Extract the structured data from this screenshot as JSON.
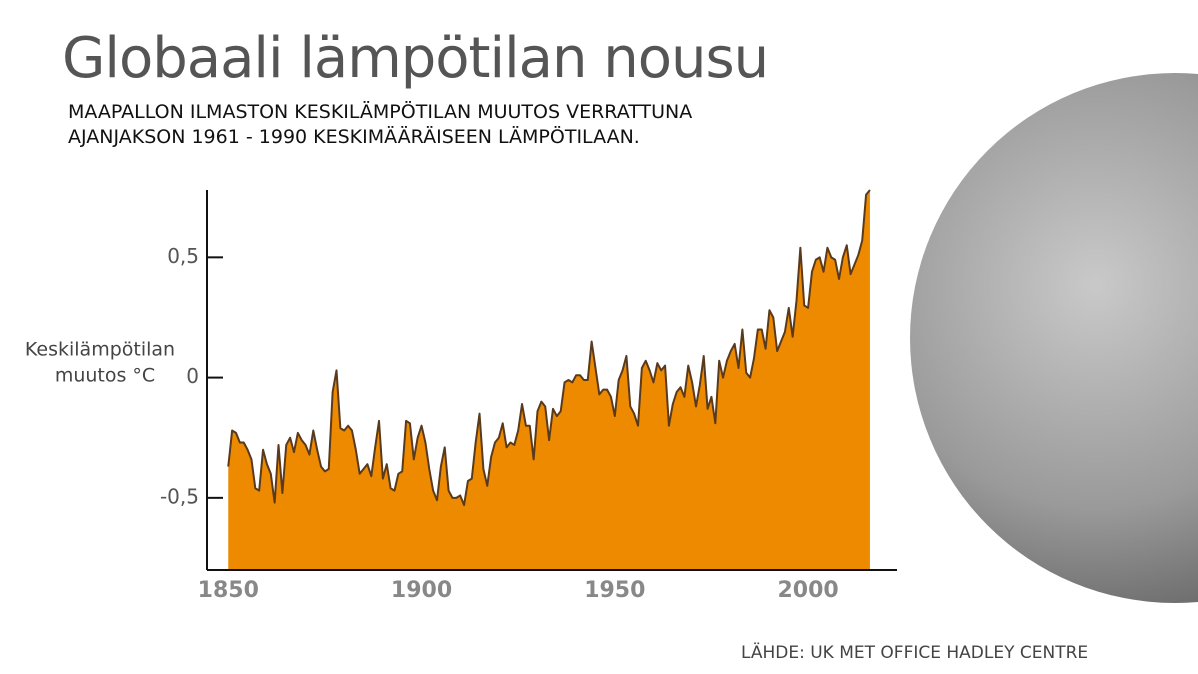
{
  "chart_data": {
    "type": "area",
    "title": "Globaali lämpötilan nousu",
    "subtitle": "MAAPALLON ILMASTON KESKILÄMPÖTILAN MUUTOS VERRATTUNA AJANJAKSON 1961 - 1990 KESKIMÄÄRÄISEEN LÄMPÖTILAAN.",
    "ylabel": [
      "Keskilämpötilan",
      "muutos °C"
    ],
    "source": "LÄHDE: UK MET OFFICE HADLEY CENTRE",
    "color": "#ee8a00",
    "line_color": "#5a3a1c",
    "xlim": [
      1844.5,
      2023
    ],
    "xticks": [
      1850,
      1900,
      1950,
      2000
    ],
    "ylim": [
      -0.8,
      0.78
    ],
    "yticks": [
      {
        "value": 0.5,
        "label": "0,5"
      },
      0,
      {
        "value": -0.5,
        "label": "-0,5"
      }
    ],
    "x": [
      1850,
      1851,
      1852,
      1853,
      1854,
      1855,
      1856,
      1857,
      1858,
      1859,
      1860,
      1861,
      1862,
      1863,
      1864,
      1865,
      1866,
      1867,
      1868,
      1869,
      1870,
      1871,
      1872,
      1873,
      1874,
      1875,
      1876,
      1877,
      1878,
      1879,
      1880,
      1881,
      1882,
      1883,
      1884,
      1885,
      1886,
      1887,
      1888,
      1889,
      1890,
      1891,
      1892,
      1893,
      1894,
      1895,
      1896,
      1897,
      1898,
      1899,
      1900,
      1901,
      1902,
      1903,
      1904,
      1905,
      1906,
      1907,
      1908,
      1909,
      1910,
      1911,
      1912,
      1913,
      1914,
      1915,
      1916,
      1917,
      1918,
      1919,
      1920,
      1921,
      1922,
      1923,
      1924,
      1925,
      1926,
      1927,
      1928,
      1929,
      1930,
      1931,
      1932,
      1933,
      1934,
      1935,
      1936,
      1937,
      1938,
      1939,
      1940,
      1941,
      1942,
      1943,
      1944,
      1945,
      1946,
      1947,
      1948,
      1949,
      1950,
      1951,
      1952,
      1953,
      1954,
      1955,
      1956,
      1957,
      1958,
      1959,
      1960,
      1961,
      1962,
      1963,
      1964,
      1965,
      1966,
      1967,
      1968,
      1969,
      1970,
      1971,
      1972,
      1973,
      1974,
      1975,
      1976,
      1977,
      1978,
      1979,
      1980,
      1981,
      1982,
      1983,
      1984,
      1985,
      1986,
      1987,
      1988,
      1989,
      1990,
      1991,
      1992,
      1993,
      1994,
      1995,
      1996,
      1997,
      1998,
      1999,
      2000,
      2001,
      2002,
      2003,
      2004,
      2005,
      2006,
      2007,
      2008,
      2009,
      2010,
      2011,
      2012,
      2013,
      2014,
      2015,
      2016
    ],
    "values": [
      -0.37,
      -0.22,
      -0.23,
      -0.27,
      -0.27,
      -0.3,
      -0.34,
      -0.46,
      -0.47,
      -0.3,
      -0.36,
      -0.4,
      -0.52,
      -0.28,
      -0.48,
      -0.28,
      -0.25,
      -0.31,
      -0.23,
      -0.26,
      -0.28,
      -0.32,
      -0.22,
      -0.3,
      -0.37,
      -0.39,
      -0.38,
      -0.06,
      0.03,
      -0.21,
      -0.22,
      -0.2,
      -0.22,
      -0.3,
      -0.4,
      -0.38,
      -0.36,
      -0.41,
      -0.29,
      -0.18,
      -0.42,
      -0.36,
      -0.46,
      -0.47,
      -0.4,
      -0.39,
      -0.18,
      -0.19,
      -0.34,
      -0.25,
      -0.2,
      -0.27,
      -0.38,
      -0.47,
      -0.51,
      -0.37,
      -0.29,
      -0.47,
      -0.5,
      -0.5,
      -0.49,
      -0.53,
      -0.43,
      -0.42,
      -0.27,
      -0.15,
      -0.38,
      -0.45,
      -0.33,
      -0.27,
      -0.25,
      -0.19,
      -0.29,
      -0.27,
      -0.28,
      -0.22,
      -0.11,
      -0.2,
      -0.2,
      -0.34,
      -0.14,
      -0.1,
      -0.12,
      -0.26,
      -0.13,
      -0.16,
      -0.14,
      -0.02,
      -0.01,
      -0.02,
      0.01,
      0.01,
      -0.01,
      -0.01,
      0.15,
      0.04,
      -0.07,
      -0.05,
      -0.05,
      -0.08,
      -0.16,
      -0.01,
      0.03,
      0.09,
      -0.12,
      -0.15,
      -0.2,
      0.04,
      0.07,
      0.03,
      -0.02,
      0.06,
      0.03,
      0.05,
      -0.2,
      -0.11,
      -0.06,
      -0.04,
      -0.08,
      0.05,
      -0.02,
      -0.12,
      -0.03,
      0.09,
      -0.13,
      -0.08,
      -0.19,
      0.07,
      0.0,
      0.07,
      0.11,
      0.14,
      0.04,
      0.2,
      0.02,
      0.0,
      0.08,
      0.2,
      0.2,
      0.12,
      0.28,
      0.25,
      0.11,
      0.15,
      0.19,
      0.29,
      0.17,
      0.32,
      0.54,
      0.3,
      0.29,
      0.44,
      0.49,
      0.5,
      0.44,
      0.54,
      0.5,
      0.49,
      0.41,
      0.5,
      0.55,
      0.43,
      0.47,
      0.51,
      0.57,
      0.76,
      0.78
    ]
  }
}
